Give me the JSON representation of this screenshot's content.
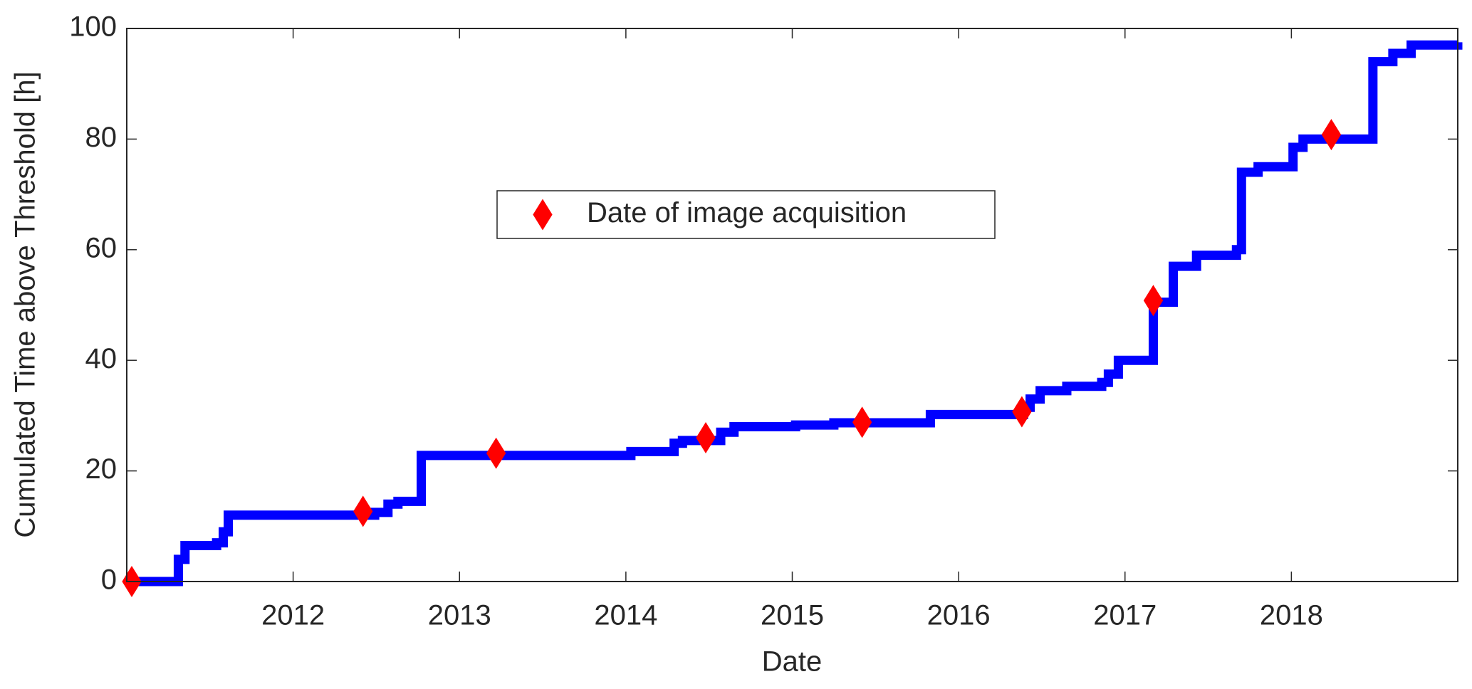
{
  "chart_data": {
    "type": "line",
    "x_label": "Date",
    "y_label": "Cumulated Time above Threshold [h]",
    "xlim": [
      2011,
      2019
    ],
    "xticks": [
      2012,
      2013,
      2014,
      2015,
      2016,
      2017,
      2018
    ],
    "ylim": [
      0,
      100
    ],
    "yticks": [
      0,
      20,
      40,
      60,
      80,
      100
    ],
    "legend_position": "upper center",
    "series": [
      {
        "color": "#0000ff",
        "step": true,
        "x": [
          2011.0,
          2011.31,
          2011.35,
          2011.54,
          2011.58,
          2011.61,
          2012.49,
          2012.57,
          2012.63,
          2012.77,
          2014.03,
          2014.29,
          2014.34,
          2014.57,
          2014.65,
          2015.02,
          2015.25,
          2015.83,
          2016.39,
          2016.43,
          2016.49,
          2016.65,
          2016.86,
          2016.9,
          2016.96,
          2017.17,
          2017.29,
          2017.43,
          2017.67,
          2017.7,
          2017.8,
          2018.01,
          2018.07,
          2018.49,
          2018.61,
          2018.72,
          2019.0
        ],
        "values": [
          0,
          4,
          6.5,
          7,
          9,
          12,
          12.5,
          14,
          14.5,
          22.8,
          23.5,
          25,
          25.5,
          27,
          28,
          28.3,
          28.7,
          30.2,
          31.5,
          33,
          34.5,
          35.3,
          36,
          37.5,
          40,
          50.5,
          57,
          59,
          60,
          74,
          75,
          78.5,
          80,
          94,
          95.5,
          97,
          97.5
        ]
      },
      {
        "name": "Date of image acquisition",
        "color": "#ff0000",
        "marker": "diamond",
        "x": [
          2011.03,
          2012.42,
          2013.22,
          2014.48,
          2015.42,
          2016.38,
          2017.17,
          2018.24
        ],
        "values": [
          0,
          12.7,
          23.2,
          26,
          28.8,
          30.7,
          50.8,
          80.8
        ]
      }
    ]
  }
}
